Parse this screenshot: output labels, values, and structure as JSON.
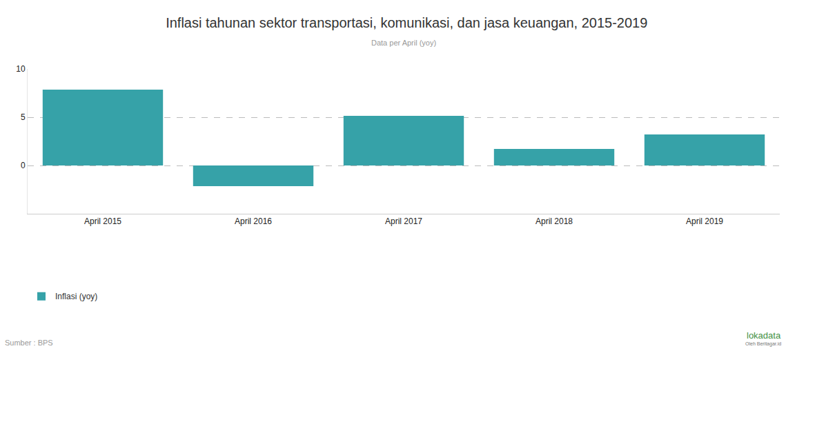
{
  "chart_data": {
    "type": "bar",
    "title": "Inflasi tahunan sektor transportasi, komunikasi, dan jasa keuangan, 2015-2019",
    "subtitle": "Data per April (yoy)",
    "categories": [
      "April 2015",
      "April 2016",
      "April 2017",
      "April 2018",
      "April 2019"
    ],
    "series": [
      {
        "name": "Inflasi (yoy)",
        "color": "#36a2a8",
        "values": [
          7.86,
          -2.14,
          5.14,
          1.71,
          3.21
        ]
      }
    ],
    "ylim": [
      -5,
      10
    ],
    "yticks": [
      0,
      5,
      10
    ],
    "grid": true,
    "legend": "bottom-left",
    "source": "Sumber : BPS",
    "annotations": [
      "lokadata",
      "Oleh Beritagar.id"
    ]
  }
}
